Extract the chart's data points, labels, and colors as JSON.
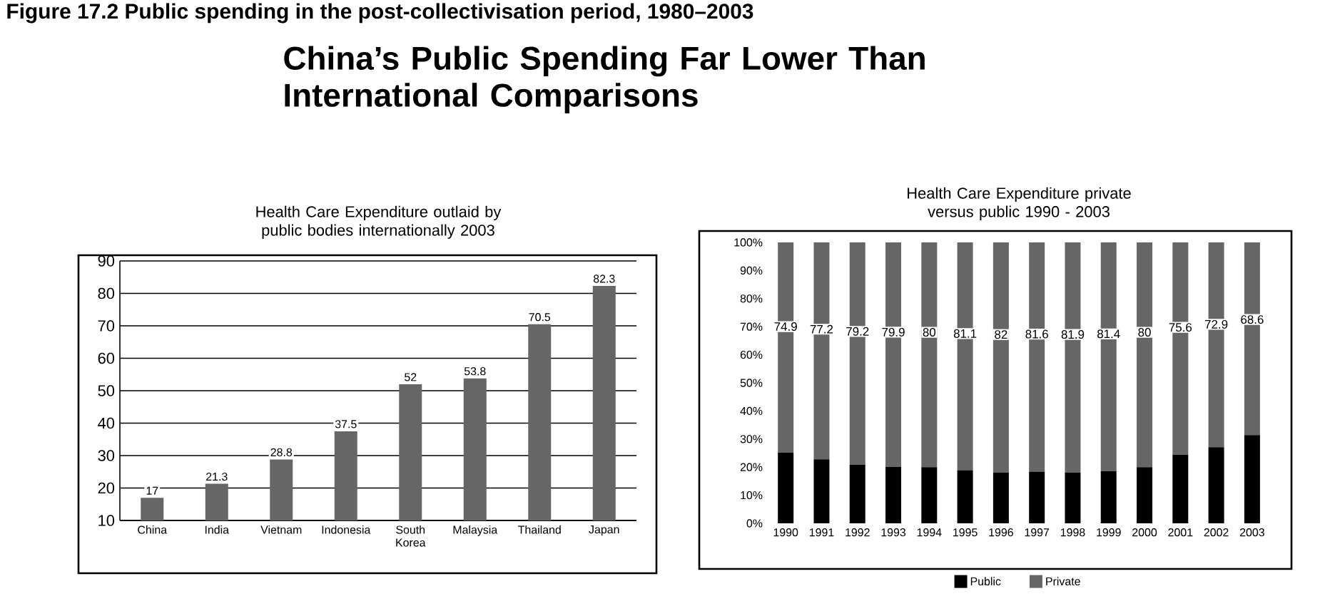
{
  "chart_data": [
    {
      "type": "bar",
      "title": "Health Care Expenditure outlaid by public bodies internationally 2003",
      "annotations": [
        "Figure 17.2 Public spending in the post-collectivisation period, 1980–2003",
        "China’s Public Spending Far Lower Than International Comparisons"
      ],
      "categories": [
        "China",
        "India",
        "Vietnam",
        "Indonesia",
        "South Korea",
        "Malaysia",
        "Thailand",
        "Japan"
      ],
      "values": [
        17,
        21.3,
        28.8,
        37.5,
        52,
        53.8,
        70.5,
        82.3
      ],
      "color": "#666666",
      "data_labels": true,
      "ylim": [
        10,
        90
      ],
      "yticks": [
        10,
        20,
        30,
        40,
        50,
        60,
        70,
        80,
        90
      ],
      "grid": "y"
    },
    {
      "type": "bar",
      "title": "Health Care Expenditure private versus public 1990 - 2003",
      "stacked": true,
      "legend": "bottom",
      "categories": [
        "1990",
        "1991",
        "1992",
        "1993",
        "1994",
        "1995",
        "1996",
        "1997",
        "1998",
        "1999",
        "2000",
        "2001",
        "2002",
        "2003"
      ],
      "series": [
        {
          "name": "Public",
          "color": "#000000",
          "values": [
            25.1,
            22.8,
            20.8,
            20.1,
            20,
            18.9,
            18,
            18.4,
            18.1,
            18.6,
            20,
            24.4,
            27.1,
            31.4
          ]
        },
        {
          "name": "Private",
          "color": "#666666",
          "values": [
            74.9,
            77.2,
            79.2,
            79.9,
            80,
            81.1,
            82,
            81.6,
            81.9,
            81.4,
            80,
            75.6,
            72.9,
            68.6
          ],
          "value_labels": [
            "74.9",
            "77.2",
            "79.2",
            "79.9",
            "80",
            "81.1",
            "82",
            "81.6",
            "81.9",
            "81.4",
            "80",
            "75.6",
            "72.9",
            "68.6"
          ]
        }
      ],
      "ylim": [
        0,
        100
      ],
      "yticks": [
        {
          "value": 0,
          "label": "0%"
        },
        {
          "value": 10,
          "label": "10%"
        },
        {
          "value": 20,
          "label": "20%"
        },
        {
          "value": 30,
          "label": "30%"
        },
        {
          "value": 40,
          "label": "40%"
        },
        {
          "value": 50,
          "label": "50%"
        },
        {
          "value": 60,
          "label": "60%"
        },
        {
          "value": 70,
          "label": "70%"
        },
        {
          "value": 80,
          "label": "80%"
        },
        {
          "value": 90,
          "label": "90%"
        },
        {
          "value": 100,
          "label": "100%"
        }
      ]
    }
  ]
}
